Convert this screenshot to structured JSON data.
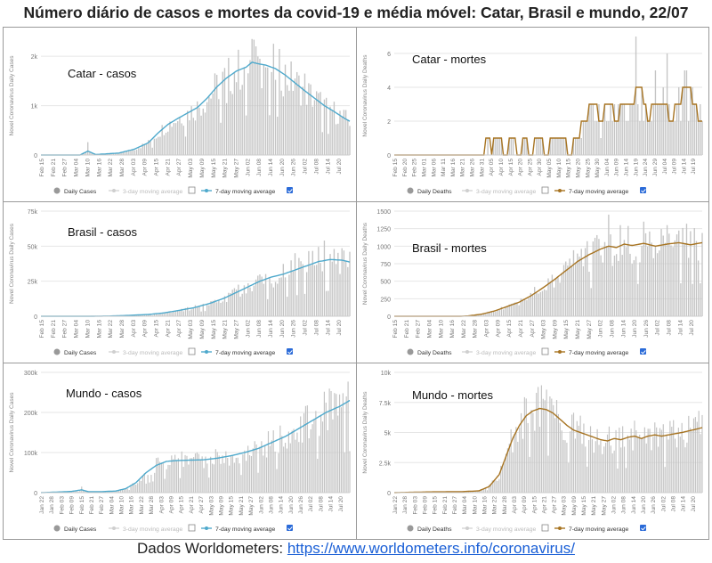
{
  "page": {
    "title": "Número diário de casos e mortes da covid-19 e média móvel: Catar, Brasil e mundo, 22/07",
    "footer_text": "Dados  Worldometers: ",
    "footer_link": "https://www.worldometers.info/coronavirus/"
  },
  "colors": {
    "bar": "#c4c4c4",
    "cases_line": "#4ea9cc",
    "deaths_line": "#a77422",
    "checkbox": "#2b6bd8",
    "grid": "#e6e6e6",
    "axis_text": "#777777"
  },
  "chart_data": [
    {
      "type": "bar",
      "label": "Catar - casos",
      "ylabel": "Novel Coronavirus Daily Cases",
      "ylim": [
        0,
        2400
      ],
      "yticks": [
        0,
        1000,
        2000
      ],
      "ytick_labels": [
        "0",
        "1k",
        "2k"
      ],
      "x_start": "2020-02-15",
      "x_end": "2020-07-22",
      "xtick_labels": [
        "Feb 15",
        "Feb 21",
        "Feb 27",
        "Mar 04",
        "Mar 10",
        "Mar 16",
        "Mar 22",
        "Mar 28",
        "Apr 03",
        "Apr 09",
        "Apr 15",
        "Apr 21",
        "Apr 27",
        "May 03",
        "May 09",
        "May 15",
        "May 21",
        "May 27",
        "Jun 02",
        "Jun 08",
        "Jun 14",
        "Jun 20",
        "Jun 26",
        "Jul 02",
        "Jul 08",
        "Jul 14",
        "Jul 20"
      ],
      "curve": [
        [
          0,
          0
        ],
        [
          20,
          0
        ],
        [
          24,
          80
        ],
        [
          28,
          10
        ],
        [
          40,
          40
        ],
        [
          48,
          120
        ],
        [
          55,
          250
        ],
        [
          60,
          450
        ],
        [
          65,
          620
        ],
        [
          70,
          740
        ],
        [
          75,
          850
        ],
        [
          80,
          960
        ],
        [
          85,
          1150
        ],
        [
          90,
          1380
        ],
        [
          95,
          1560
        ],
        [
          100,
          1700
        ],
        [
          105,
          1780
        ],
        [
          108,
          1880
        ],
        [
          111,
          1850
        ],
        [
          115,
          1820
        ],
        [
          120,
          1750
        ],
        [
          125,
          1620
        ],
        [
          130,
          1460
        ],
        [
          135,
          1300
        ],
        [
          140,
          1150
        ],
        [
          145,
          1000
        ],
        [
          150,
          880
        ],
        [
          155,
          750
        ],
        [
          160,
          640
        ],
        [
          165,
          560
        ],
        [
          170,
          490
        ],
        [
          175,
          440
        ],
        [
          180,
          420
        ]
      ],
      "spikes": [
        [
          24,
          260
        ],
        [
          95,
          1050
        ],
        [
          108,
          2350
        ],
        [
          110,
          2200
        ],
        [
          112,
          1950
        ],
        [
          130,
          1550
        ],
        [
          135,
          1650
        ]
      ],
      "series": [
        {
          "name": "Daily Cases",
          "kind": "bar"
        },
        {
          "name": "3-day moving average",
          "kind": "line",
          "enabled": false
        },
        {
          "name": "7-day moving average",
          "kind": "line",
          "enabled": true
        }
      ]
    },
    {
      "type": "bar",
      "label": "Catar - mortes",
      "ylabel": "Novel Coronavirus Daily Deaths",
      "ylim": [
        0,
        7
      ],
      "yticks": [
        0,
        2,
        4,
        6
      ],
      "ytick_labels": [
        "0",
        "2",
        "4",
        "6"
      ],
      "x_start": "2020-02-15",
      "x_end": "2020-07-22",
      "xtick_labels": [
        "Feb 15",
        "Feb 20",
        "Feb 25",
        "Mar 01",
        "Mar 06",
        "Mar 11",
        "Mar 16",
        "Mar 21",
        "Mar 26",
        "Mar 31",
        "Apr 05",
        "Apr 10",
        "Apr 15",
        "Apr 20",
        "Apr 25",
        "Apr 30",
        "May 05",
        "May 10",
        "May 15",
        "May 20",
        "May 25",
        "May 30",
        "Jun 04",
        "Jun 09",
        "Jun 14",
        "Jun 19",
        "Jun 24",
        "Jun 29",
        "Jul 04",
        "Jul 09",
        "Jul 14",
        "Jul 19"
      ],
      "curve": [
        [
          0,
          0
        ],
        [
          46,
          0
        ],
        [
          48,
          1
        ],
        [
          50,
          0
        ],
        [
          52,
          1
        ],
        [
          54,
          1
        ],
        [
          57,
          0
        ],
        [
          60,
          1
        ],
        [
          64,
          0
        ],
        [
          67,
          1
        ],
        [
          70,
          0
        ],
        [
          74,
          1
        ],
        [
          78,
          0
        ],
        [
          82,
          1
        ],
        [
          86,
          1
        ],
        [
          90,
          0
        ],
        [
          94,
          1
        ],
        [
          98,
          2
        ],
        [
          102,
          3
        ],
        [
          106,
          2
        ],
        [
          110,
          3
        ],
        [
          114,
          2
        ],
        [
          118,
          3
        ],
        [
          122,
          3
        ],
        [
          126,
          4
        ],
        [
          130,
          2
        ],
        [
          134,
          3
        ],
        [
          138,
          3
        ],
        [
          142,
          2
        ],
        [
          146,
          3
        ],
        [
          150,
          4
        ],
        [
          154,
          3
        ],
        [
          156,
          2
        ],
        [
          159,
          2
        ],
        [
          162,
          4
        ],
        [
          165,
          3
        ],
        [
          168,
          1
        ],
        [
          172,
          2
        ],
        [
          176,
          1
        ],
        [
          180,
          2
        ]
      ],
      "spikes": [
        [
          124,
          7
        ],
        [
          134,
          5
        ],
        [
          140,
          6
        ],
        [
          150,
          5
        ],
        [
          162,
          5
        ]
      ],
      "series": [
        {
          "name": "Daily Deaths",
          "kind": "bar"
        },
        {
          "name": "3-day moving average",
          "kind": "line",
          "enabled": false
        },
        {
          "name": "7-day moving average",
          "kind": "line",
          "enabled": true
        }
      ]
    },
    {
      "type": "bar",
      "label": "Brasil - casos",
      "ylabel": "Novel Coronavirus Daily Cases",
      "ylim": [
        0,
        75000
      ],
      "yticks": [
        0,
        25000,
        50000,
        75000
      ],
      "ytick_labels": [
        "0",
        "25k",
        "50k",
        "75k"
      ],
      "x_start": "2020-02-15",
      "x_end": "2020-07-22",
      "xtick_labels": [
        "Feb 15",
        "Feb 21",
        "Feb 27",
        "Mar 04",
        "Mar 10",
        "Mar 16",
        "Mar 22",
        "Mar 28",
        "Apr 03",
        "Apr 09",
        "Apr 15",
        "Apr 21",
        "Apr 27",
        "May 03",
        "May 09",
        "May 15",
        "May 21",
        "May 27",
        "Jun 02",
        "Jun 08",
        "Jun 14",
        "Jun 20",
        "Jun 26",
        "Jul 02",
        "Jul 08",
        "Jul 14",
        "Jul 20"
      ],
      "curve": [
        [
          0,
          0
        ],
        [
          25,
          0
        ],
        [
          35,
          150
        ],
        [
          45,
          600
        ],
        [
          55,
          1300
        ],
        [
          62,
          2200
        ],
        [
          70,
          4000
        ],
        [
          78,
          6000
        ],
        [
          86,
          9000
        ],
        [
          94,
          13000
        ],
        [
          100,
          17000
        ],
        [
          106,
          21000
        ],
        [
          112,
          25000
        ],
        [
          118,
          28000
        ],
        [
          124,
          30000
        ],
        [
          130,
          33000
        ],
        [
          136,
          36000
        ],
        [
          142,
          39000
        ],
        [
          148,
          40500
        ],
        [
          154,
          40000
        ],
        [
          160,
          38000
        ],
        [
          166,
          36000
        ],
        [
          170,
          37000
        ],
        [
          174,
          36000
        ],
        [
          178,
          34000
        ],
        [
          180,
          35000
        ]
      ],
      "spikes": [
        [
          130,
          45000
        ],
        [
          145,
          54000
        ],
        [
          150,
          48000
        ],
        [
          158,
          46000
        ],
        [
          165,
          48000
        ],
        [
          172,
          46000
        ],
        [
          176,
          58000
        ],
        [
          180,
          67000
        ]
      ],
      "series": [
        {
          "name": "Daily Cases",
          "kind": "bar"
        },
        {
          "name": "3-day moving average",
          "kind": "line",
          "enabled": false
        },
        {
          "name": "7-day moving average",
          "kind": "line",
          "enabled": true
        }
      ]
    },
    {
      "type": "bar",
      "label": "Brasil - mortes",
      "ylabel": "Novel Coronavirus Daily Deaths",
      "ylim": [
        0,
        1500
      ],
      "yticks": [
        0,
        250,
        500,
        750,
        1000,
        1250,
        1500
      ],
      "ytick_labels": [
        "0",
        "250",
        "500",
        "750",
        "1000",
        "1250",
        "1500"
      ],
      "x_start": "2020-02-15",
      "x_end": "2020-07-22",
      "xtick_labels": [
        "Feb 15",
        "Feb 21",
        "Feb 27",
        "Mar 04",
        "Mar 10",
        "Mar 16",
        "Mar 22",
        "Mar 28",
        "Apr 03",
        "Apr 09",
        "Apr 15",
        "Apr 21",
        "Apr 27",
        "May 03",
        "May 09",
        "May 15",
        "May 21",
        "May 27",
        "Jun 02",
        "Jun 08",
        "Jun 14",
        "Jun 20",
        "Jun 26",
        "Jul 02",
        "Jul 08",
        "Jul 14",
        "Jul 20"
      ],
      "curve": [
        [
          0,
          0
        ],
        [
          34,
          0
        ],
        [
          38,
          5
        ],
        [
          45,
          30
        ],
        [
          52,
          80
        ],
        [
          58,
          140
        ],
        [
          64,
          200
        ],
        [
          70,
          290
        ],
        [
          76,
          400
        ],
        [
          82,
          520
        ],
        [
          88,
          650
        ],
        [
          94,
          780
        ],
        [
          100,
          880
        ],
        [
          106,
          960
        ],
        [
          110,
          1000
        ],
        [
          114,
          980
        ],
        [
          118,
          1030
        ],
        [
          122,
          1010
        ],
        [
          128,
          1040
        ],
        [
          134,
          1000
        ],
        [
          140,
          1030
        ],
        [
          146,
          1050
        ],
        [
          152,
          1020
        ],
        [
          158,
          1050
        ],
        [
          164,
          1060
        ],
        [
          170,
          1040
        ],
        [
          176,
          1050
        ],
        [
          180,
          1050
        ]
      ],
      "spikes": [
        [
          110,
          1450
        ],
        [
          116,
          1300
        ],
        [
          128,
          1350
        ],
        [
          140,
          1300
        ],
        [
          150,
          1320
        ],
        [
          160,
          1300
        ],
        [
          170,
          1330
        ]
      ],
      "series": [
        {
          "name": "Daily Deaths",
          "kind": "bar"
        },
        {
          "name": "3-day moving average",
          "kind": "line",
          "enabled": false
        },
        {
          "name": "7-day moving average",
          "kind": "line",
          "enabled": true
        }
      ]
    },
    {
      "type": "bar",
      "label": "Mundo - casos",
      "ylabel": "Novel Coronavirus Daily Cases",
      "ylim": [
        0,
        300000
      ],
      "yticks": [
        0,
        100000,
        200000,
        300000
      ],
      "ytick_labels": [
        "0",
        "100k",
        "200k",
        "300k"
      ],
      "x_start": "2020-01-22",
      "x_end": "2020-07-22",
      "xtick_labels": [
        "Jan 22",
        "Jan 28",
        "Feb 03",
        "Feb 09",
        "Feb 15",
        "Feb 21",
        "Feb 27",
        "Mar 04",
        "Mar 10",
        "Mar 16",
        "Mar 22",
        "Mar 28",
        "Apr 03",
        "Apr 09",
        "Apr 15",
        "Apr 21",
        "Apr 27",
        "May 03",
        "May 09",
        "May 15",
        "May 21",
        "May 27",
        "Jun 02",
        "Jun 08",
        "Jun 14",
        "Jun 20",
        "Jun 26",
        "Jul 02",
        "Jul 08",
        "Jul 14",
        "Jul 20"
      ],
      "curve": [
        [
          0,
          0
        ],
        [
          10,
          1500
        ],
        [
          18,
          3000
        ],
        [
          24,
          7000
        ],
        [
          28,
          2500
        ],
        [
          36,
          2500
        ],
        [
          44,
          4000
        ],
        [
          50,
          10000
        ],
        [
          56,
          25000
        ],
        [
          62,
          50000
        ],
        [
          68,
          68000
        ],
        [
          74,
          78000
        ],
        [
          80,
          80000
        ],
        [
          88,
          81000
        ],
        [
          96,
          82000
        ],
        [
          104,
          86000
        ],
        [
          112,
          92000
        ],
        [
          120,
          100000
        ],
        [
          128,
          110000
        ],
        [
          136,
          125000
        ],
        [
          144,
          140000
        ],
        [
          152,
          160000
        ],
        [
          160,
          180000
        ],
        [
          168,
          200000
        ],
        [
          176,
          215000
        ],
        [
          182,
          230000
        ]
      ],
      "spikes": [
        [
          24,
          15000
        ],
        [
          176,
          245000
        ],
        [
          180,
          240000
        ]
      ],
      "series": [
        {
          "name": "Daily Cases",
          "kind": "bar"
        },
        {
          "name": "3-day moving average",
          "kind": "line",
          "enabled": false
        },
        {
          "name": "7-day moving average",
          "kind": "line",
          "enabled": true
        }
      ]
    },
    {
      "type": "bar",
      "label": "Mundo - mortes",
      "ylabel": "Novel Coronavirus Daily Deaths",
      "ylim": [
        0,
        10000
      ],
      "yticks": [
        0,
        2500,
        5000,
        7500,
        10000
      ],
      "ytick_labels": [
        "0",
        "2.5k",
        "5k",
        "7.5k",
        "10k"
      ],
      "x_start": "2020-01-22",
      "x_end": "2020-07-22",
      "xtick_labels": [
        "Jan 22",
        "Jan 28",
        "Feb 03",
        "Feb 09",
        "Feb 15",
        "Feb 21",
        "Feb 27",
        "Mar 04",
        "Mar 10",
        "Mar 16",
        "Mar 22",
        "Mar 28",
        "Apr 03",
        "Apr 09",
        "Apr 15",
        "Apr 21",
        "Apr 27",
        "May 03",
        "May 09",
        "May 15",
        "May 21",
        "May 27",
        "Jun 02",
        "Jun 08",
        "Jun 14",
        "Jun 20",
        "Jun 26",
        "Jul 02",
        "Jul 08",
        "Jul 14",
        "Jul 20"
      ],
      "curve": [
        [
          0,
          0
        ],
        [
          20,
          60
        ],
        [
          40,
          80
        ],
        [
          50,
          150
        ],
        [
          56,
          500
        ],
        [
          62,
          1500
        ],
        [
          66,
          3000
        ],
        [
          70,
          4500
        ],
        [
          74,
          5600
        ],
        [
          78,
          6400
        ],
        [
          82,
          6800
        ],
        [
          86,
          7000
        ],
        [
          90,
          6900
        ],
        [
          94,
          6600
        ],
        [
          98,
          6100
        ],
        [
          102,
          5600
        ],
        [
          106,
          5200
        ],
        [
          110,
          5000
        ],
        [
          114,
          4800
        ],
        [
          118,
          4600
        ],
        [
          122,
          4400
        ],
        [
          126,
          4300
        ],
        [
          130,
          4500
        ],
        [
          134,
          4400
        ],
        [
          138,
          4600
        ],
        [
          142,
          4700
        ],
        [
          146,
          4500
        ],
        [
          150,
          4700
        ],
        [
          154,
          4800
        ],
        [
          158,
          4700
        ],
        [
          162,
          4800
        ],
        [
          166,
          4900
        ],
        [
          170,
          5000
        ],
        [
          176,
          5200
        ],
        [
          182,
          5400
        ]
      ],
      "spikes": [
        [
          84,
          8300
        ],
        [
          88,
          7800
        ],
        [
          92,
          8000
        ],
        [
          96,
          7700
        ],
        [
          180,
          6800
        ]
      ],
      "series": [
        {
          "name": "Daily Deaths",
          "kind": "bar"
        },
        {
          "name": "3-day moving average",
          "kind": "line",
          "enabled": false
        },
        {
          "name": "7-day moving average",
          "kind": "line",
          "enabled": true
        }
      ]
    }
  ]
}
